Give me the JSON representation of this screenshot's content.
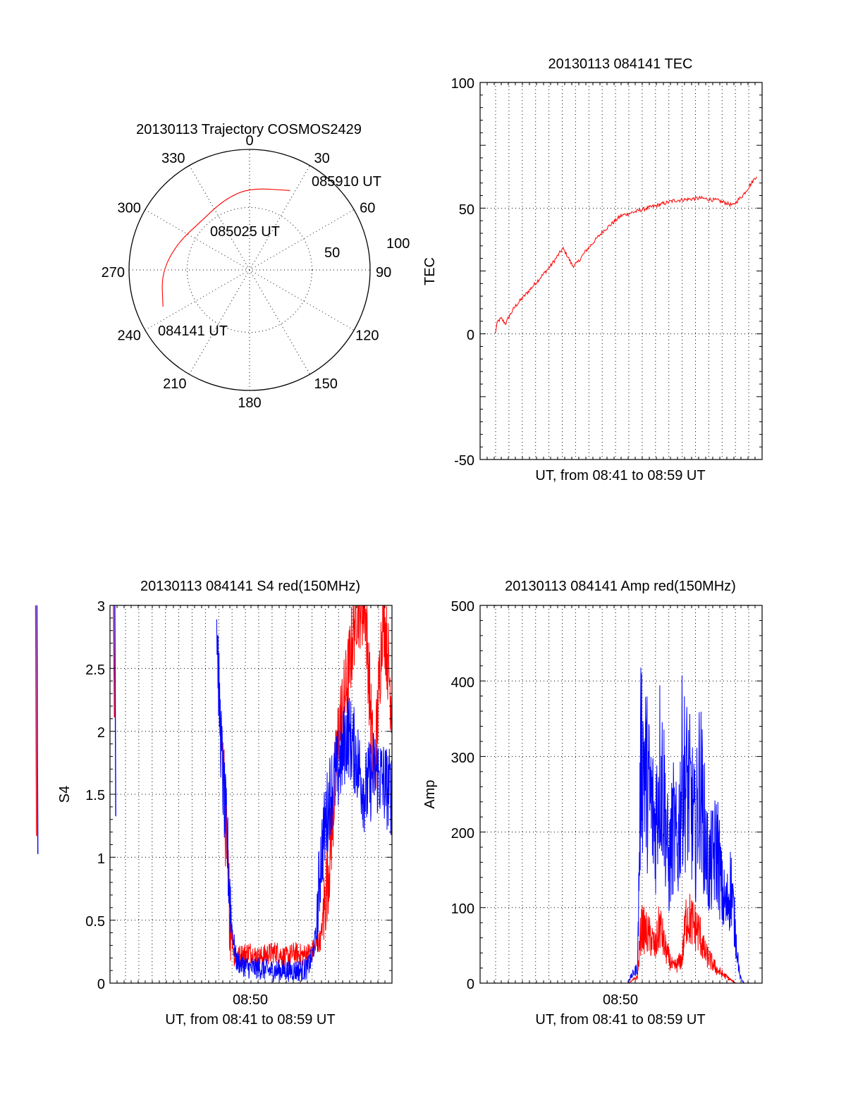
{
  "colors": {
    "red": "#ff0000",
    "blue": "#0000ff",
    "axes": "#000000",
    "background": "#ffffff"
  },
  "polar": {
    "title": "20130113 Trajectory COSMOS2429",
    "azimuth_labels": [
      "0",
      "30",
      "60",
      "90",
      "120",
      "150",
      "180",
      "210",
      "240",
      "270",
      "300",
      "330"
    ],
    "radial_labels": [
      "50",
      "100"
    ],
    "point_labels": [
      "085910 UT",
      "085025 UT",
      "084141 UT"
    ]
  },
  "tec": {
    "title": "20130113 084141 TEC",
    "ylabel": "TEC",
    "xlabel": "UT, from 08:41 to 08:59 UT",
    "yticks": [
      "100",
      "50",
      "0",
      "-50"
    ]
  },
  "s4": {
    "title": "20130113 084141 S4 red(150MHz)",
    "ylabel": "S4",
    "xlabel": "UT, from 08:41 to 08:59 UT",
    "xtick": "08:50",
    "yticks": [
      "3",
      "2.5",
      "2",
      "1.5",
      "1",
      "0.5",
      "0"
    ]
  },
  "amp": {
    "title": "20130113 084141 Amp red(150MHz)",
    "ylabel": "Amp",
    "xlabel": "UT, from 08:41 to 08:59 UT",
    "xtick": "08:50",
    "yticks": [
      "500",
      "400",
      "300",
      "200",
      "100",
      "0"
    ]
  },
  "chart_data": [
    {
      "type": "scatter",
      "subtype": "polar-trajectory",
      "title": "20130113 Trajectory COSMOS2429",
      "azimuth_deg": [
        0,
        30,
        60,
        90,
        120,
        150,
        180,
        210,
        240,
        270,
        300,
        330
      ],
      "radial_rings": [
        50,
        100
      ],
      "series": [
        {
          "color": "#ff0000",
          "points": [
            {
              "label": "084141 UT",
              "azimuth": 247,
              "radius": 78
            },
            {
              "azimuth": 268,
              "radius": 73
            },
            {
              "azimuth": 290,
              "radius": 64
            },
            {
              "label": "085025 UT",
              "azimuth": 315,
              "radius": 57
            },
            {
              "azimuth": 340,
              "radius": 62
            },
            {
              "azimuth": 0,
              "radius": 68
            },
            {
              "label": "085910 UT",
              "azimuth": 27,
              "radius": 74
            }
          ]
        }
      ]
    },
    {
      "type": "line",
      "title": "20130113 084141 TEC",
      "xlabel": "UT, from 08:41 to 08:59 UT",
      "ylabel": "TEC",
      "xlim": [
        8.68,
        9.0
      ],
      "ylim": [
        -50,
        100
      ],
      "grid": true,
      "series": [
        {
          "color": "#ff0000",
          "x": [
            8.697,
            8.7,
            8.704,
            8.709,
            8.713,
            8.72,
            8.73,
            8.74,
            8.75,
            8.76,
            8.77,
            8.774,
            8.779,
            8.785,
            8.79,
            8.8,
            8.81,
            8.82,
            8.83,
            8.84,
            8.85,
            8.86,
            8.88,
            8.9,
            8.93,
            8.95,
            8.96,
            8.967,
            8.972,
            8.978,
            8.986,
            8.994
          ],
          "y": [
            0,
            5,
            6,
            4,
            7,
            11,
            15,
            19,
            23,
            27,
            32,
            34,
            31,
            27,
            28,
            33,
            37,
            41,
            44,
            47,
            48,
            49,
            51,
            53,
            54,
            53,
            52,
            51,
            53,
            55,
            59,
            63
          ]
        }
      ]
    },
    {
      "type": "line",
      "title": "20130113 084141 S4 red(150MHz)",
      "xlabel": "UT, from 08:41 to 08:59 UT",
      "ylabel": "S4",
      "xticks": [
        "08:50"
      ],
      "xlim": [
        8.683,
        9.0
      ],
      "ylim": [
        0,
        3
      ],
      "grid": true,
      "series": [
        {
          "color": "#ff0000",
          "x": [
            8.81,
            8.812,
            8.815,
            8.819,
            8.823,
            8.83,
            8.84,
            8.85,
            8.86,
            8.87,
            8.88,
            8.89,
            8.9,
            8.91,
            8.915,
            8.92,
            8.93,
            8.94,
            8.95,
            8.96,
            8.97,
            8.98,
            8.99,
            9.0
          ],
          "y": [
            1.8,
            1.4,
            0.9,
            0.45,
            0.2,
            0.22,
            0.25,
            0.2,
            0.23,
            0.25,
            0.2,
            0.24,
            0.22,
            0.25,
            0.3,
            0.35,
            1.0,
            2.0,
            2.4,
            3.0,
            3.0,
            1.6,
            3.0,
            2.2
          ]
        },
        {
          "color": "#0000ff",
          "x": [
            8.803,
            8.806,
            8.81,
            8.814,
            8.817,
            8.82,
            8.825,
            8.83,
            8.84,
            8.85,
            8.86,
            8.87,
            8.88,
            8.89,
            8.9,
            8.905,
            8.91,
            8.915,
            8.92,
            8.93,
            8.94,
            8.95,
            8.96,
            8.97,
            8.98,
            8.99,
            9.0
          ],
          "y": [
            2.9,
            2.2,
            1.6,
            1.2,
            0.8,
            0.45,
            0.18,
            0.15,
            0.12,
            0.12,
            0.1,
            0.1,
            0.1,
            0.1,
            0.1,
            0.12,
            0.2,
            0.4,
            1.0,
            1.5,
            1.7,
            2.0,
            1.8,
            1.5,
            1.7,
            1.6,
            1.5
          ]
        }
      ]
    },
    {
      "type": "line",
      "title": "20130113 084141 Amp red(150MHz)",
      "xlabel": "UT, from 08:41 to 08:59 UT",
      "ylabel": "Amp",
      "xticks": [
        "08:50"
      ],
      "xlim": [
        8.683,
        9.0
      ],
      "ylim": [
        0,
        500
      ],
      "grid": true,
      "series": [
        {
          "color": "#0000ff",
          "x": [
            8.695,
            8.75,
            8.8,
            8.85,
            8.85,
            8.86,
            8.864,
            8.87,
            8.876,
            8.88,
            8.885,
            8.89,
            8.895,
            8.9,
            8.905,
            8.91,
            8.915,
            8.92,
            8.925,
            8.93,
            8.935,
            8.94,
            8.945,
            8.95,
            8.955,
            8.96,
            8.965,
            8.97,
            8.975,
            8.98,
            8.985,
            8.99,
            8.995
          ],
          "y": [
            0,
            0,
            0,
            0,
            5,
            25,
            380,
            330,
            280,
            250,
            350,
            300,
            180,
            250,
            210,
            340,
            320,
            290,
            230,
            330,
            250,
            180,
            200,
            220,
            140,
            120,
            160,
            80,
            10,
            0,
            0,
            0,
            0
          ]
        },
        {
          "color": "#ff0000",
          "x": [
            8.695,
            8.8,
            8.85,
            8.86,
            8.864,
            8.87,
            8.876,
            8.88,
            8.885,
            8.89,
            8.895,
            8.9,
            8.905,
            8.91,
            8.915,
            8.92,
            8.925,
            8.93,
            8.935,
            8.94,
            8.945,
            8.95,
            8.955,
            8.96,
            8.965,
            8.97,
            8.98
          ],
          "y": [
            0,
            0,
            0,
            10,
            90,
            80,
            70,
            55,
            95,
            60,
            40,
            25,
            30,
            40,
            110,
            100,
            90,
            80,
            50,
            40,
            30,
            20,
            15,
            10,
            5,
            0,
            0
          ]
        }
      ]
    }
  ]
}
